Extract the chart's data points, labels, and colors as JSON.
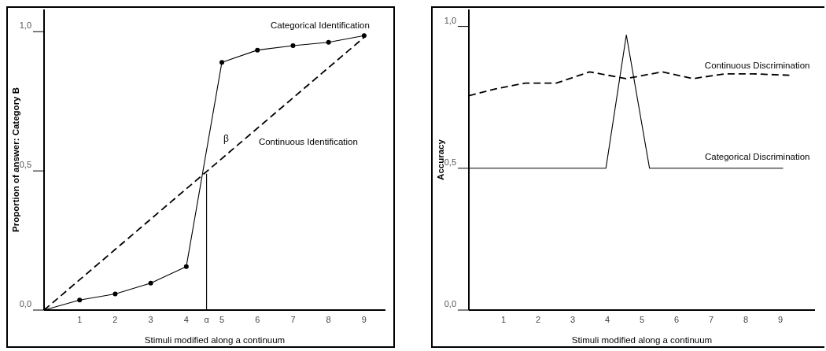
{
  "chart_data": [
    {
      "type": "line",
      "xlabel": "Stimuli modified along a continuum",
      "ylabel": "Proportion of answer: Category B",
      "xlim": [
        0,
        9.6
      ],
      "xticks": [
        1,
        2,
        3,
        4,
        {
          "value": 4.57,
          "label": "α"
        },
        5,
        6,
        7,
        8,
        9
      ],
      "ylim": [
        0,
        1.08
      ],
      "yticks": [
        {
          "value": 0,
          "label": "0,0"
        },
        {
          "value": 0.5,
          "label": "0,5"
        },
        {
          "value": 1,
          "label": "1,0"
        }
      ],
      "series": [
        {
          "name": "Categorical Identification",
          "color": "#000000",
          "marker": "circle",
          "line_style": "solid",
          "x": [
            0,
            1,
            2,
            3,
            4,
            5,
            6,
            7,
            8,
            9
          ],
          "values": [
            0,
            0.036,
            0.058,
            0.097,
            0.156,
            0.89,
            0.934,
            0.95,
            0.962,
            0.986
          ]
        },
        {
          "name": "Continuous Identification",
          "color": "#000000",
          "marker": "none",
          "line_style": "dashed",
          "x": [
            0,
            9
          ],
          "values": [
            0,
            0.98
          ]
        },
        {
          "color": "#000000",
          "marker": "none",
          "line_style": "solid",
          "x": [
            4.57,
            4.57
          ],
          "values": [
            0,
            0.49
          ]
        }
      ],
      "annotations": [
        "β"
      ]
    },
    {
      "type": "line",
      "xlabel": "Stimuli modified along a continuum",
      "ylabel": "Accuracy",
      "xlim": [
        0,
        10
      ],
      "xticks": [
        1,
        2,
        3,
        4,
        5,
        6,
        7,
        8,
        9
      ],
      "ylim": [
        0,
        1.06
      ],
      "yticks": [
        {
          "value": 0,
          "label": "0,0"
        },
        {
          "value": 0.5,
          "label": "0,5"
        },
        {
          "value": 1,
          "label": "1,0"
        }
      ],
      "series": [
        {
          "name": "Continuous Discrimination",
          "color": "#000000",
          "marker": "none",
          "line_style": "dashed",
          "x": [
            0,
            0.78,
            1.62,
            2.52,
            3.49,
            4.54,
            5.59,
            6.47,
            7.41,
            8.21,
            9.26
          ],
          "values": [
            0.756,
            0.78,
            0.8,
            0.8,
            0.84,
            0.816,
            0.84,
            0.816,
            0.833,
            0.833,
            0.828
          ]
        },
        {
          "name": "Categorical Discrimination",
          "color": "#000000",
          "marker": "none",
          "line_style": "solid",
          "x": [
            0,
            3.96,
            4.55,
            5.22,
            9.08
          ],
          "values": [
            0.5,
            0.5,
            0.97,
            0.5,
            0.5
          ]
        }
      ]
    }
  ]
}
